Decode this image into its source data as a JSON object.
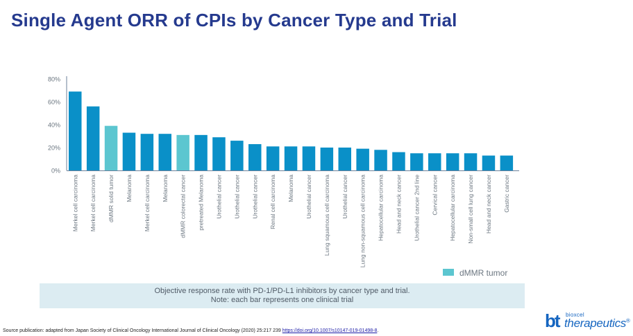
{
  "title": "Single Agent ORR of CPIs by Cancer Type and Trial",
  "chart_data": {
    "type": "bar",
    "title": "Single Agent ORR of CPIs by Cancer Type and Trial",
    "categories": [
      "Merkel cell carcinoma",
      "Merkel cell carcinoma",
      "dMMR solid tumor",
      "Melanoma",
      "Merkel cell carcinoma",
      "Melanoma",
      "dMMR colorectal cancer",
      "pretreated Melanoma",
      "Urothelial cancer",
      "Urothelial cancer",
      "Urothelial cancer",
      "Renal cell carcinoma",
      "Melanoma",
      "Urothelial cancer",
      "Lung squamous cell carcinoma",
      "Urothelial cancer",
      "Lung non-squamous cell carcinoma",
      "Hepatocellular carcinoma",
      "Head and neck cancer",
      "Urothelial cancer 2nd line",
      "Cervical cancer",
      "Hepatocellular carcinoma",
      "Non-small cell lung cancer",
      "Head and neck cancer",
      "Gastric cancer"
    ],
    "values": [
      69,
      56,
      39,
      33,
      32,
      32,
      31,
      31,
      29,
      26,
      23,
      21,
      21,
      21,
      20,
      20,
      19,
      18,
      16,
      15,
      15,
      15,
      15,
      13,
      13
    ],
    "series_group": [
      "default",
      "default",
      "dMMR",
      "default",
      "default",
      "default",
      "dMMR",
      "default",
      "default",
      "default",
      "default",
      "default",
      "default",
      "default",
      "default",
      "default",
      "default",
      "default",
      "default",
      "default",
      "default",
      "default",
      "default",
      "default",
      "default"
    ],
    "colors": {
      "default": "#0a90c8",
      "dMMR": "#5cc6d0"
    },
    "y_ticks": [
      "0%",
      "20%",
      "40%",
      "60%",
      "80%"
    ],
    "ylim": [
      0,
      80
    ],
    "grid": false,
    "legend": {
      "label": "dMMR tumor",
      "position": "bottom-right"
    }
  },
  "note": {
    "line1": "Objective response rate with PD-1/PD-L1 inhibitors by cancer type and trial.",
    "line2": "Note: each bar represents one clinical trial"
  },
  "source": {
    "text": "Source publication: adapted from Japan Society of Clinical Oncology International Journal of Clinical Oncology (2020) 25:217 239 ",
    "link": "https://doi.org/10.1007/s10147-019-01498-8",
    "suffix": "."
  },
  "logo": {
    "mark": "bt",
    "top": "bioxcel",
    "main": "therapeutics",
    "reg": "®"
  }
}
